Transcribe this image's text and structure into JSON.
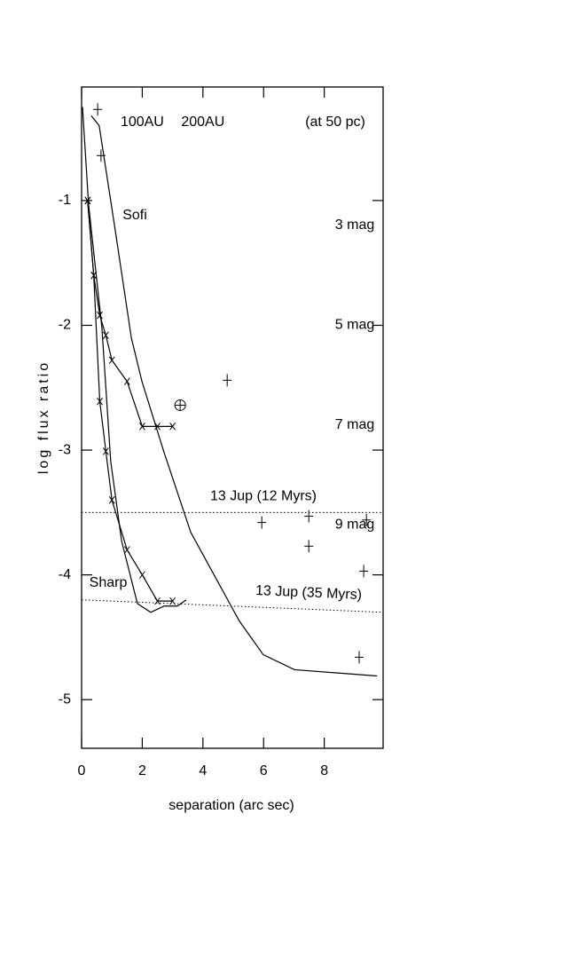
{
  "chart_data": {
    "type": "line",
    "xlabel": "separation (arc sec)",
    "ylabel": "log flux ratio",
    "xlim": [
      0,
      9.94
    ],
    "ylim": [
      -5.39,
      -0.09
    ],
    "xticks": [
      0,
      2,
      4,
      6,
      8
    ],
    "yticks": [
      -1,
      -2,
      -3,
      -4,
      -5
    ],
    "top_ticks": [
      {
        "value": 2,
        "label": "100AU"
      },
      {
        "value": 4,
        "label": "200AU"
      }
    ],
    "note": "(at 50 pc)",
    "mag_ticks": [
      {
        "value": -1.2,
        "label": "3 mag"
      },
      {
        "value": -2.0,
        "label": "5 mag"
      },
      {
        "value": -2.8,
        "label": "7 mag"
      },
      {
        "value": -3.6,
        "label": "9 mag"
      }
    ],
    "annotations": [
      "Sofi",
      "Sharp"
    ],
    "series": [
      {
        "color": "#000000",
        "marker": "none",
        "x": [
          0.32,
          0.58,
          0.82,
          1.11,
          1.64,
          1.99,
          2.72,
          3.6,
          5.2,
          5.99,
          7.02,
          9.74
        ],
        "values": [
          -0.32,
          -0.4,
          -0.78,
          -1.24,
          -2.1,
          -2.45,
          -3.02,
          -3.66,
          -4.37,
          -4.64,
          -4.76,
          -4.81
        ]
      },
      {
        "color": "#000000",
        "marker": "x",
        "x": [
          0.2,
          0.4,
          0.6,
          0.8,
          1.0,
          1.5,
          2.0,
          2.5,
          3.0
        ],
        "values": [
          -1.0,
          -1.6,
          -1.92,
          -2.08,
          -2.28,
          -2.45,
          -2.81,
          -2.81,
          -2.81
        ]
      },
      {
        "color": "#000000",
        "marker": "x",
        "x": [
          0.2,
          0.4,
          0.6,
          0.8,
          1.0,
          1.5,
          2.0,
          2.5,
          3.0
        ],
        "values": [
          -1.0,
          -1.6,
          -2.61,
          -3.01,
          -3.4,
          -3.8,
          -4.0,
          -4.21,
          -4.21
        ]
      },
      {
        "color": "#000000",
        "marker": "none",
        "x": [
          0.03,
          0.23,
          0.67,
          0.96,
          1.32,
          1.84,
          2.28,
          2.72,
          3.16,
          3.45
        ],
        "values": [
          -0.25,
          -1.03,
          -2.02,
          -3.09,
          -3.73,
          -4.23,
          -4.3,
          -4.25,
          -4.25,
          -4.2
        ]
      }
    ],
    "points": {
      "marker": "+",
      "x": [
        0.53,
        0.64,
        4.8,
        5.94,
        7.49,
        7.49,
        9.39,
        9.3,
        9.15
      ],
      "values": [
        -0.27,
        -0.64,
        -2.44,
        -3.58,
        -3.53,
        -3.77,
        -3.56,
        -3.97,
        -4.66
      ]
    },
    "circled_point": {
      "x": 3.25,
      "value": -2.64
    },
    "reference_lines": [
      {
        "label": "13 Jup (12 Myrs)",
        "values": [
          -3.5,
          -3.5
        ]
      },
      {
        "label": "13 Jup (35 Myrs)",
        "values": [
          -4.2,
          -4.3
        ]
      }
    ]
  }
}
